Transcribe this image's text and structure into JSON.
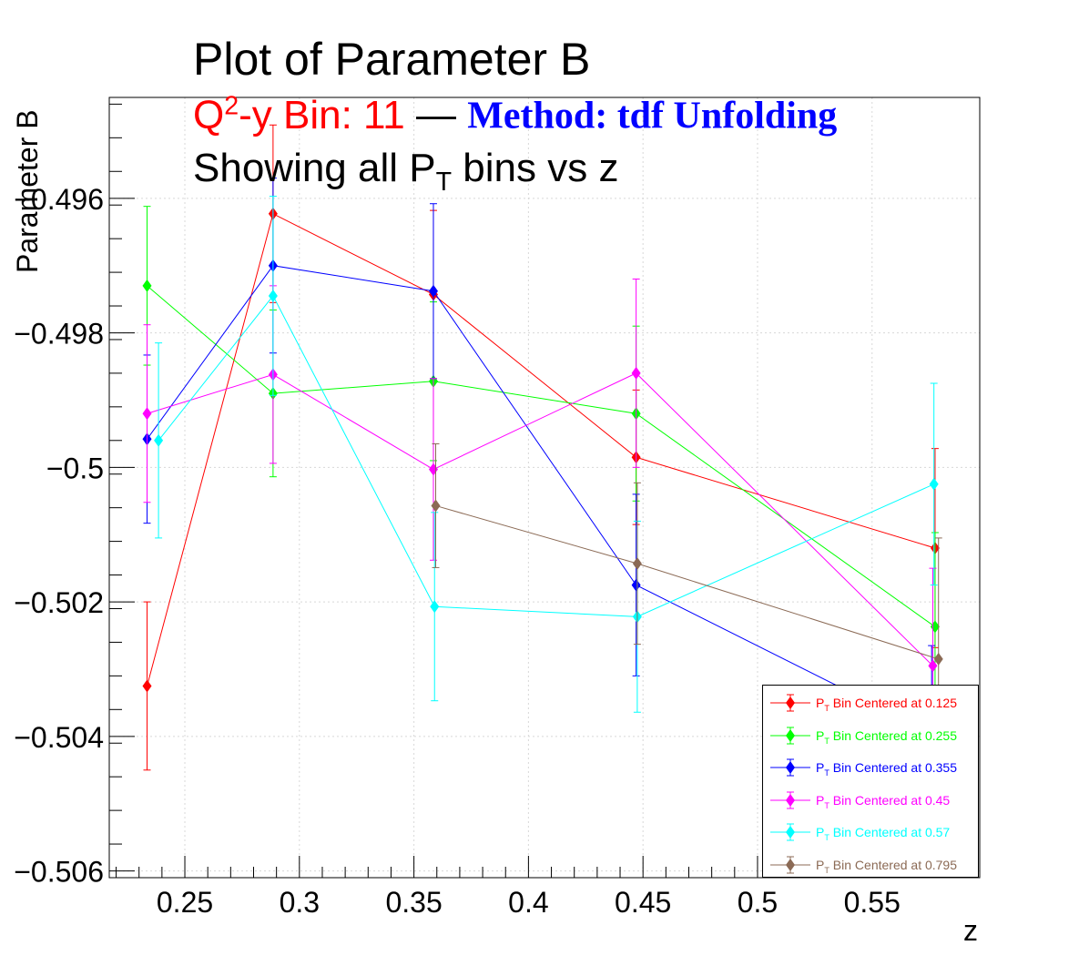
{
  "title": {
    "main": "Plot of Parameter B",
    "q2_prefix": "Q",
    "q2_sup": "2",
    "bin_text": "-y Bin: 11",
    "dash": "—",
    "method": "Method: tdf Unfolding",
    "line3_pre": "Showing all P",
    "line3_sub": "T",
    "line3_post": " bins vs z"
  },
  "chart_data": {
    "type": "scatter",
    "xlabel": "z",
    "ylabel": "Parameter B",
    "xlim": [
      0.217,
      0.597
    ],
    "ylim": [
      -0.5061,
      -0.4945
    ],
    "xticks": [
      0.25,
      0.3,
      0.35,
      0.4,
      0.45,
      0.5,
      0.55
    ],
    "xtick_labels": [
      "0.25",
      "0.3",
      "0.35",
      "0.4",
      "0.45",
      "0.5",
      "0.55"
    ],
    "yticks": [
      -0.496,
      -0.498,
      -0.5,
      -0.502,
      -0.504,
      -0.506
    ],
    "ytick_labels": [
      "−0.496",
      "−0.498",
      "−0.5",
      "−0.502",
      "−0.504",
      "−0.506"
    ],
    "grid": true,
    "legend_position": "bottom-right",
    "series": [
      {
        "name_pre": "P",
        "name_sub": "T",
        "name_post": " Bin Centered at 0.125",
        "color": "#ff0000",
        "marker": "circle",
        "x": [
          0.2335,
          0.2885,
          0.3585,
          0.447,
          0.5775
        ],
        "y": [
          -0.50325,
          -0.49623,
          -0.49743,
          -0.49985,
          -0.5012
        ],
        "err": [
          0.00125,
          0.00132,
          0.00125,
          0.001,
          0.00148
        ]
      },
      {
        "name_pre": "P",
        "name_sub": "T",
        "name_post": " Bin Centered at 0.255",
        "color": "#00ff00",
        "marker": "circle",
        "x": [
          0.2335,
          0.2885,
          0.3585,
          0.447,
          0.5775
        ],
        "y": [
          -0.4973,
          -0.4989,
          -0.49872,
          -0.4992,
          -0.50237
        ],
        "err": [
          0.00118,
          0.00124,
          0.00118,
          0.0013,
          0.0014
        ]
      },
      {
        "name_pre": "P",
        "name_sub": "T",
        "name_post": " Bin Centered at 0.355",
        "color": "#0000ff",
        "marker": "circle",
        "x": [
          0.2335,
          0.2885,
          0.3585,
          0.447,
          0.576
        ],
        "y": [
          -0.49958,
          -0.497,
          -0.49738,
          -0.50175,
          -0.50395
        ],
        "err": [
          0.00125,
          0.0013,
          0.0013,
          0.00135,
          0.0013
        ]
      },
      {
        "name_pre": "P",
        "name_sub": "T",
        "name_post": " Bin Centered at 0.45",
        "color": "#ff00ff",
        "marker": "circle",
        "x": [
          0.2335,
          0.2885,
          0.3585,
          0.447,
          0.5765
        ],
        "y": [
          -0.4992,
          -0.49862,
          -0.50003,
          -0.4986,
          -0.50295
        ],
        "err": [
          0.00132,
          0.00132,
          0.00135,
          0.0014,
          0.00145
        ]
      },
      {
        "name_pre": "P",
        "name_sub": "T",
        "name_post": " Bin Centered at 0.57",
        "color": "#00ffff",
        "marker": "circle",
        "x": [
          0.2385,
          0.2885,
          0.359,
          0.4475,
          0.577
        ],
        "y": [
          -0.4996,
          -0.49745,
          -0.50207,
          -0.50222,
          -0.50025
        ],
        "err": [
          0.00145,
          0.00148,
          0.0014,
          0.00142,
          0.0015
        ]
      },
      {
        "name_pre": "P",
        "name_sub": "T",
        "name_post": " Bin Centered at 0.795",
        "color": "#8b6a55",
        "marker": "diamond",
        "x": [
          0.3595,
          0.4475,
          0.579
        ],
        "y": [
          -0.50057,
          -0.50143,
          -0.50285
        ],
        "err": [
          0.00092,
          0.0012,
          0.0018
        ]
      }
    ]
  }
}
